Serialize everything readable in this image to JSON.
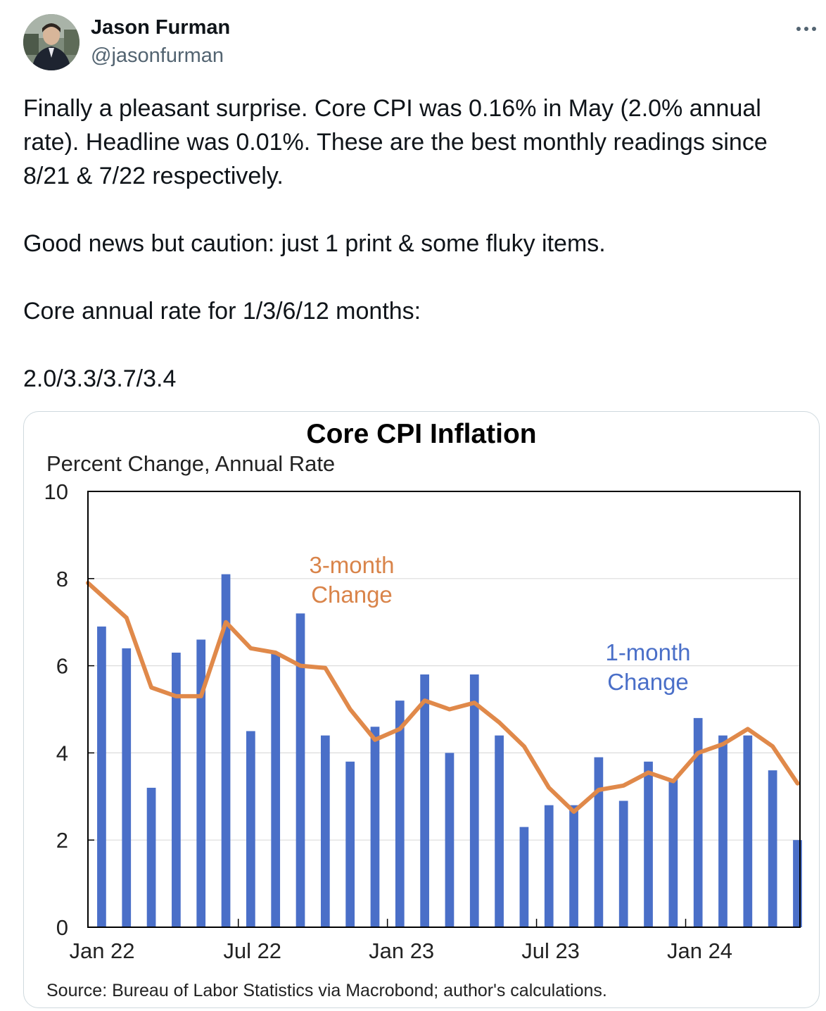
{
  "author": {
    "name": "Jason Furman",
    "handle": "@jasonfurman",
    "avatar": "profile-photo"
  },
  "more_icon": "more-horizontal-icon",
  "tweet": {
    "lines": [
      "Finally a pleasant surprise. Core CPI was 0.16% in May (2.0% annual",
      "rate). Headline was 0.01%. These are the best monthly readings since",
      "8/21 & 7/22 respectively."
    ],
    "p2": "Good news but caution: just 1 print & some fluky items.",
    "p3": "Core annual rate for 1/3/6/12 months:",
    "p4": "2.0/3.3/3.7/3.4"
  },
  "colors": {
    "bar": "#4a6fc8",
    "line": "#e0894a",
    "label_1m": "#4a6fc8",
    "label_3m": "#d9844a"
  },
  "chart_data": {
    "type": "bar",
    "title": "Core CPI Inflation",
    "ylabel": "Percent Change, Annual Rate",
    "ylim": [
      0,
      10
    ],
    "yticks": [
      "0",
      "2",
      "4",
      "6",
      "8",
      "10"
    ],
    "xticks": [
      "Jan 22",
      "Jul 22",
      "Jan 23",
      "Jul 23",
      "Jan 24"
    ],
    "categories": [
      "Jan 22",
      "Feb 22",
      "Mar 22",
      "Apr 22",
      "May 22",
      "Jun 22",
      "Jul 22",
      "Aug 22",
      "Sep 22",
      "Oct 22",
      "Nov 22",
      "Dec 22",
      "Jan 23",
      "Feb 23",
      "Mar 23",
      "Apr 23",
      "May 23",
      "Jun 23",
      "Jul 23",
      "Aug 23",
      "Sep 23",
      "Oct 23",
      "Nov 23",
      "Dec 23",
      "Jan 24",
      "Feb 24",
      "Mar 24",
      "Apr 24",
      "May 24"
    ],
    "series": [
      {
        "name": "1-month Change",
        "kind": "bar",
        "values": [
          6.9,
          6.4,
          3.2,
          6.3,
          6.6,
          8.1,
          4.5,
          6.3,
          7.2,
          4.4,
          3.8,
          4.6,
          5.2,
          5.8,
          4.0,
          5.8,
          4.4,
          2.3,
          2.8,
          2.8,
          3.9,
          2.9,
          3.8,
          3.4,
          4.8,
          4.4,
          4.4,
          3.6,
          2.0
        ]
      },
      {
        "name": "3-month Change",
        "kind": "line",
        "values": [
          7.9,
          7.1,
          5.5,
          5.3,
          5.3,
          7.0,
          6.4,
          6.3,
          6.0,
          5.95,
          5.0,
          4.3,
          4.55,
          5.2,
          5.0,
          5.15,
          4.7,
          4.15,
          3.2,
          2.65,
          3.15,
          3.25,
          3.55,
          3.35,
          4.0,
          4.2,
          4.55,
          4.15,
          3.3
        ]
      }
    ],
    "annotations": {
      "three_month": [
        "3-month",
        "Change"
      ],
      "one_month": [
        "1-month",
        "Change"
      ]
    },
    "source": "Source: Bureau of Labor Statistics via Macrobond; author's calculations."
  }
}
